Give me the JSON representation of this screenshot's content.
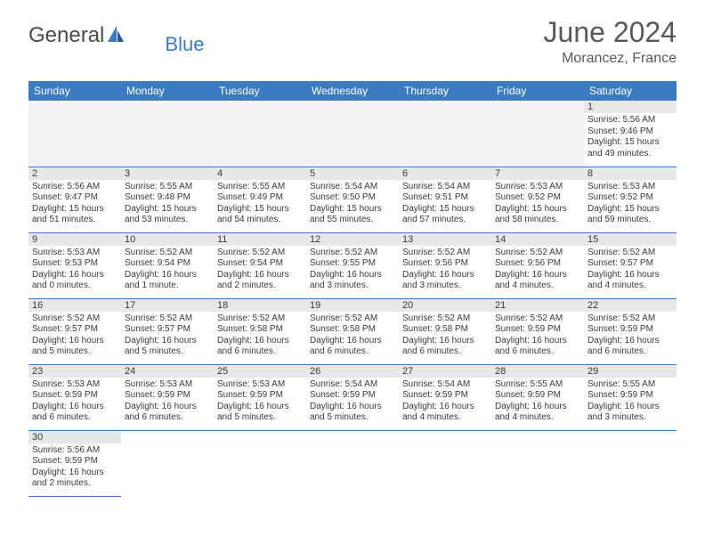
{
  "brand": {
    "part1": "General",
    "part2": "Blue",
    "icon_color": "#3b7bbf",
    "text1_color": "#4a4a4a"
  },
  "title": {
    "month": "June 2024",
    "location": "Morancez, France",
    "color": "#595959"
  },
  "colors": {
    "header_bg": "#3b7bbf",
    "header_text": "#ffffff",
    "daynum_bg": "#e8e8e8",
    "border": "#3b7bbf"
  },
  "weekdays": [
    "Sunday",
    "Monday",
    "Tuesday",
    "Wednesday",
    "Thursday",
    "Friday",
    "Saturday"
  ],
  "leading_blanks": 6,
  "days": [
    {
      "n": "1",
      "sunrise": "5:56 AM",
      "sunset": "9:46 PM",
      "daylight": "15 hours and 49 minutes."
    },
    {
      "n": "2",
      "sunrise": "5:56 AM",
      "sunset": "9:47 PM",
      "daylight": "15 hours and 51 minutes."
    },
    {
      "n": "3",
      "sunrise": "5:55 AM",
      "sunset": "9:48 PM",
      "daylight": "15 hours and 53 minutes."
    },
    {
      "n": "4",
      "sunrise": "5:55 AM",
      "sunset": "9:49 PM",
      "daylight": "15 hours and 54 minutes."
    },
    {
      "n": "5",
      "sunrise": "5:54 AM",
      "sunset": "9:50 PM",
      "daylight": "15 hours and 55 minutes."
    },
    {
      "n": "6",
      "sunrise": "5:54 AM",
      "sunset": "9:51 PM",
      "daylight": "15 hours and 57 minutes."
    },
    {
      "n": "7",
      "sunrise": "5:53 AM",
      "sunset": "9:52 PM",
      "daylight": "15 hours and 58 minutes."
    },
    {
      "n": "8",
      "sunrise": "5:53 AM",
      "sunset": "9:52 PM",
      "daylight": "15 hours and 59 minutes."
    },
    {
      "n": "9",
      "sunrise": "5:53 AM",
      "sunset": "9:53 PM",
      "daylight": "16 hours and 0 minutes."
    },
    {
      "n": "10",
      "sunrise": "5:52 AM",
      "sunset": "9:54 PM",
      "daylight": "16 hours and 1 minute."
    },
    {
      "n": "11",
      "sunrise": "5:52 AM",
      "sunset": "9:54 PM",
      "daylight": "16 hours and 2 minutes."
    },
    {
      "n": "12",
      "sunrise": "5:52 AM",
      "sunset": "9:55 PM",
      "daylight": "16 hours and 3 minutes."
    },
    {
      "n": "13",
      "sunrise": "5:52 AM",
      "sunset": "9:56 PM",
      "daylight": "16 hours and 3 minutes."
    },
    {
      "n": "14",
      "sunrise": "5:52 AM",
      "sunset": "9:56 PM",
      "daylight": "16 hours and 4 minutes."
    },
    {
      "n": "15",
      "sunrise": "5:52 AM",
      "sunset": "9:57 PM",
      "daylight": "16 hours and 4 minutes."
    },
    {
      "n": "16",
      "sunrise": "5:52 AM",
      "sunset": "9:57 PM",
      "daylight": "16 hours and 5 minutes."
    },
    {
      "n": "17",
      "sunrise": "5:52 AM",
      "sunset": "9:57 PM",
      "daylight": "16 hours and 5 minutes."
    },
    {
      "n": "18",
      "sunrise": "5:52 AM",
      "sunset": "9:58 PM",
      "daylight": "16 hours and 6 minutes."
    },
    {
      "n": "19",
      "sunrise": "5:52 AM",
      "sunset": "9:58 PM",
      "daylight": "16 hours and 6 minutes."
    },
    {
      "n": "20",
      "sunrise": "5:52 AM",
      "sunset": "9:58 PM",
      "daylight": "16 hours and 6 minutes."
    },
    {
      "n": "21",
      "sunrise": "5:52 AM",
      "sunset": "9:59 PM",
      "daylight": "16 hours and 6 minutes."
    },
    {
      "n": "22",
      "sunrise": "5:52 AM",
      "sunset": "9:59 PM",
      "daylight": "16 hours and 6 minutes."
    },
    {
      "n": "23",
      "sunrise": "5:53 AM",
      "sunset": "9:59 PM",
      "daylight": "16 hours and 6 minutes."
    },
    {
      "n": "24",
      "sunrise": "5:53 AM",
      "sunset": "9:59 PM",
      "daylight": "16 hours and 6 minutes."
    },
    {
      "n": "25",
      "sunrise": "5:53 AM",
      "sunset": "9:59 PM",
      "daylight": "16 hours and 5 minutes."
    },
    {
      "n": "26",
      "sunrise": "5:54 AM",
      "sunset": "9:59 PM",
      "daylight": "16 hours and 5 minutes."
    },
    {
      "n": "27",
      "sunrise": "5:54 AM",
      "sunset": "9:59 PM",
      "daylight": "16 hours and 4 minutes."
    },
    {
      "n": "28",
      "sunrise": "5:55 AM",
      "sunset": "9:59 PM",
      "daylight": "16 hours and 4 minutes."
    },
    {
      "n": "29",
      "sunrise": "5:55 AM",
      "sunset": "9:59 PM",
      "daylight": "16 hours and 3 minutes."
    },
    {
      "n": "30",
      "sunrise": "5:56 AM",
      "sunset": "9:59 PM",
      "daylight": "16 hours and 2 minutes."
    }
  ],
  "labels": {
    "sunrise": "Sunrise: ",
    "sunset": "Sunset: ",
    "daylight": "Daylight: "
  }
}
